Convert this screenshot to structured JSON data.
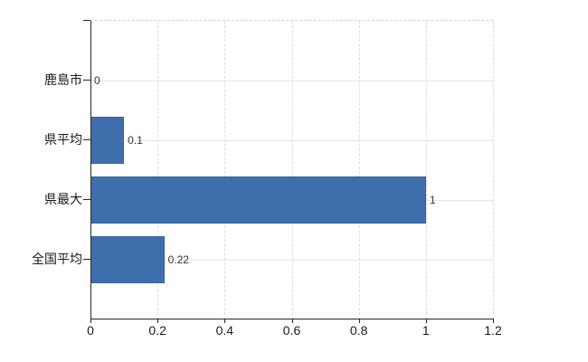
{
  "chart_data": {
    "type": "bar",
    "orientation": "horizontal",
    "title": "",
    "xlabel": "",
    "ylabel": "",
    "categories": [
      "鹿島市",
      "県平均",
      "県最大",
      "全国平均"
    ],
    "values": [
      0,
      0.1,
      1,
      0.22
    ],
    "value_labels": [
      "0",
      "0.1",
      "1",
      "0.22"
    ],
    "xlim": [
      0,
      1.2
    ],
    "xticks": [
      0,
      0.2,
      0.4,
      0.6,
      0.8,
      1,
      1.2
    ],
    "xtick_labels": [
      "0",
      "0.2",
      "0.4",
      "0.6",
      "0.8",
      "1",
      "1.2"
    ],
    "grid": true,
    "legend": false,
    "bar_color": "#3e6fac",
    "bar_border_color": "#35639e",
    "axis_color": "#262626",
    "gridline_color_h": "#e4e8e2",
    "gridline_color_v": "#dcdcdc",
    "background_color": "#ffffff"
  }
}
